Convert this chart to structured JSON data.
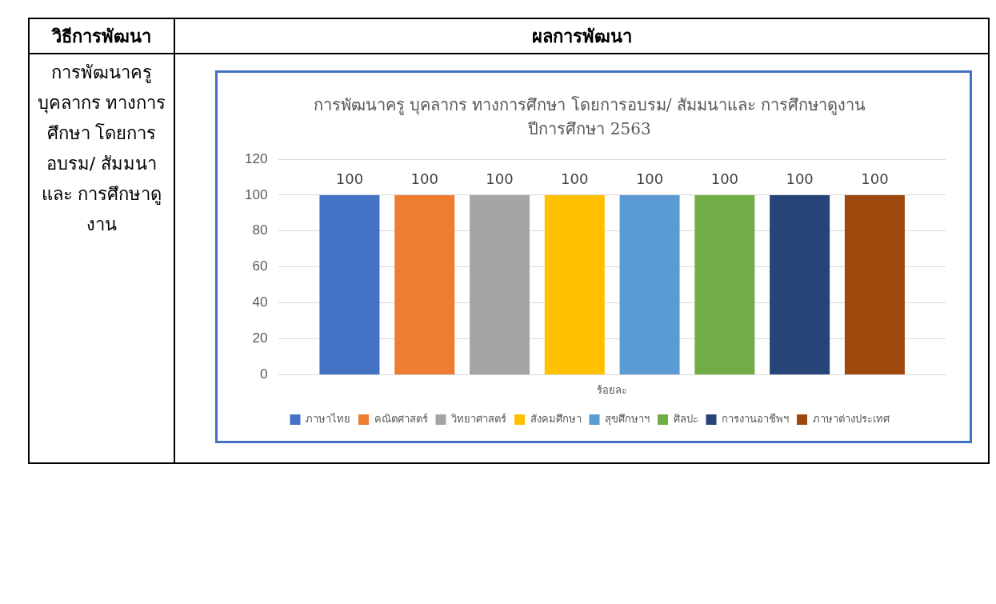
{
  "chart_data": {
    "type": "bar",
    "title": "การพัฒนาครู บุคลากร ทางการศึกษา โดยการอบรม/ สัมมนาและ การศึกษาดูงาน",
    "subtitle": "ปีการศึกษา 2563",
    "annotations": [
      "วิธีการพัฒนา",
      "ผลการพัฒนา",
      "การพัฒนาครู บุคลากร ทางการศึกษา โดยการอบรม/ สัมมนาและ การศึกษาดูงาน"
    ],
    "categories": [
      "ร้อยละ"
    ],
    "series": [
      {
        "name": "ภาษาไทย",
        "color": "#4472c4",
        "values": [
          100
        ]
      },
      {
        "name": "คณิตศาสตร์",
        "color": "#ed7d31",
        "values": [
          100
        ]
      },
      {
        "name": "วิทยาศาสตร์",
        "color": "#a5a5a5",
        "values": [
          100
        ]
      },
      {
        "name": "สังคมศึกษา",
        "color": "#ffc000",
        "values": [
          100
        ]
      },
      {
        "name": "สุขศึกษาฯ",
        "color": "#5b9bd5",
        "values": [
          100
        ]
      },
      {
        "name": "ศิลปะ",
        "color": "#70ad47",
        "values": [
          100
        ]
      },
      {
        "name": "การงานอาชีพฯ",
        "color": "#264478",
        "values": [
          100
        ]
      },
      {
        "name": "ภาษาต่างประเทศ",
        "color": "#9e480e",
        "values": [
          100
        ]
      }
    ],
    "ylim": [
      0,
      120
    ],
    "yticks": [
      0,
      20,
      40,
      60,
      80,
      100,
      120
    ],
    "grid": "y",
    "legend": "bottom",
    "data_labels": true
  }
}
